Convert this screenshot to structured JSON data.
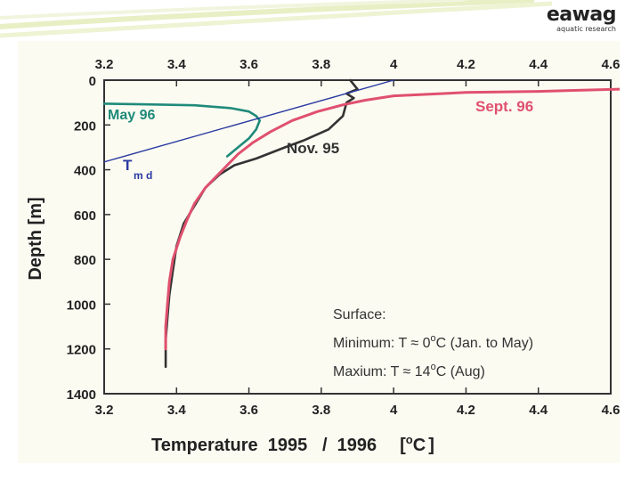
{
  "logo": {
    "brand": "eawag",
    "tagline": "aquatic research"
  },
  "chart_data": {
    "type": "line",
    "xlabel": "Temperature  1995   /  1996",
    "xunit_open": "[",
    "xunit_mid": "C",
    "xunit_close": "]",
    "ylabel": "Depth  [m]",
    "xlim": [
      3.2,
      4.6
    ],
    "ylim": [
      0,
      1400
    ],
    "y_inverted": true,
    "x_ticks": [
      "3.2",
      "3.4",
      "3.6",
      "3.8",
      "4",
      "4.2",
      "4.4",
      "4.6"
    ],
    "y_ticks": [
      "0",
      "200",
      "400",
      "600",
      "800",
      "1000",
      "1200",
      "1400"
    ],
    "series": [
      {
        "name": "Nov. 95",
        "color": "#333333",
        "x": [
          3.88,
          3.9,
          3.87,
          3.89,
          3.87,
          3.86,
          3.82,
          3.75,
          3.7,
          3.62,
          3.56,
          3.52,
          3.48,
          3.45,
          3.42,
          3.4,
          3.39,
          3.38,
          3.375,
          3.37,
          3.37
        ],
        "y": [
          0,
          40,
          60,
          80,
          100,
          160,
          220,
          270,
          300,
          350,
          380,
          420,
          480,
          560,
          640,
          740,
          850,
          960,
          1060,
          1160,
          1280
        ]
      },
      {
        "name": "Sept. 96",
        "color": "#e0506e",
        "x": [
          4.63,
          4.4,
          4.2,
          4.0,
          3.92,
          3.86,
          3.79,
          3.72,
          3.66,
          3.61,
          3.57,
          3.54,
          3.51,
          3.48,
          3.45,
          3.43,
          3.41,
          3.39,
          3.38,
          3.375,
          3.37,
          3.37
        ],
        "y": [
          40,
          50,
          55,
          70,
          90,
          110,
          140,
          180,
          230,
          280,
          330,
          380,
          430,
          480,
          550,
          620,
          700,
          800,
          900,
          1000,
          1100,
          1200
        ]
      },
      {
        "name": "May  96",
        "color": "#1f8a7a",
        "x": [
          3.2,
          3.32,
          3.45,
          3.55,
          3.6,
          3.62,
          3.63,
          3.62,
          3.6,
          3.57,
          3.54
        ],
        "y": [
          105,
          108,
          112,
          125,
          140,
          160,
          180,
          220,
          260,
          300,
          340
        ]
      },
      {
        "name": "T",
        "sub": "m d",
        "color": "#2a3aa0",
        "x": [
          3.2,
          4.0
        ],
        "y": [
          365,
          0
        ]
      }
    ],
    "annotations": {
      "surface_title": "Surface:",
      "minimum_a": "Minimum:  T ≈  0",
      "minimum_b": "C (Jan. to May)",
      "maximum_a": "Maxium:  T ≈  14",
      "maximum_b": "C (Aug)",
      "degree": "o"
    }
  }
}
